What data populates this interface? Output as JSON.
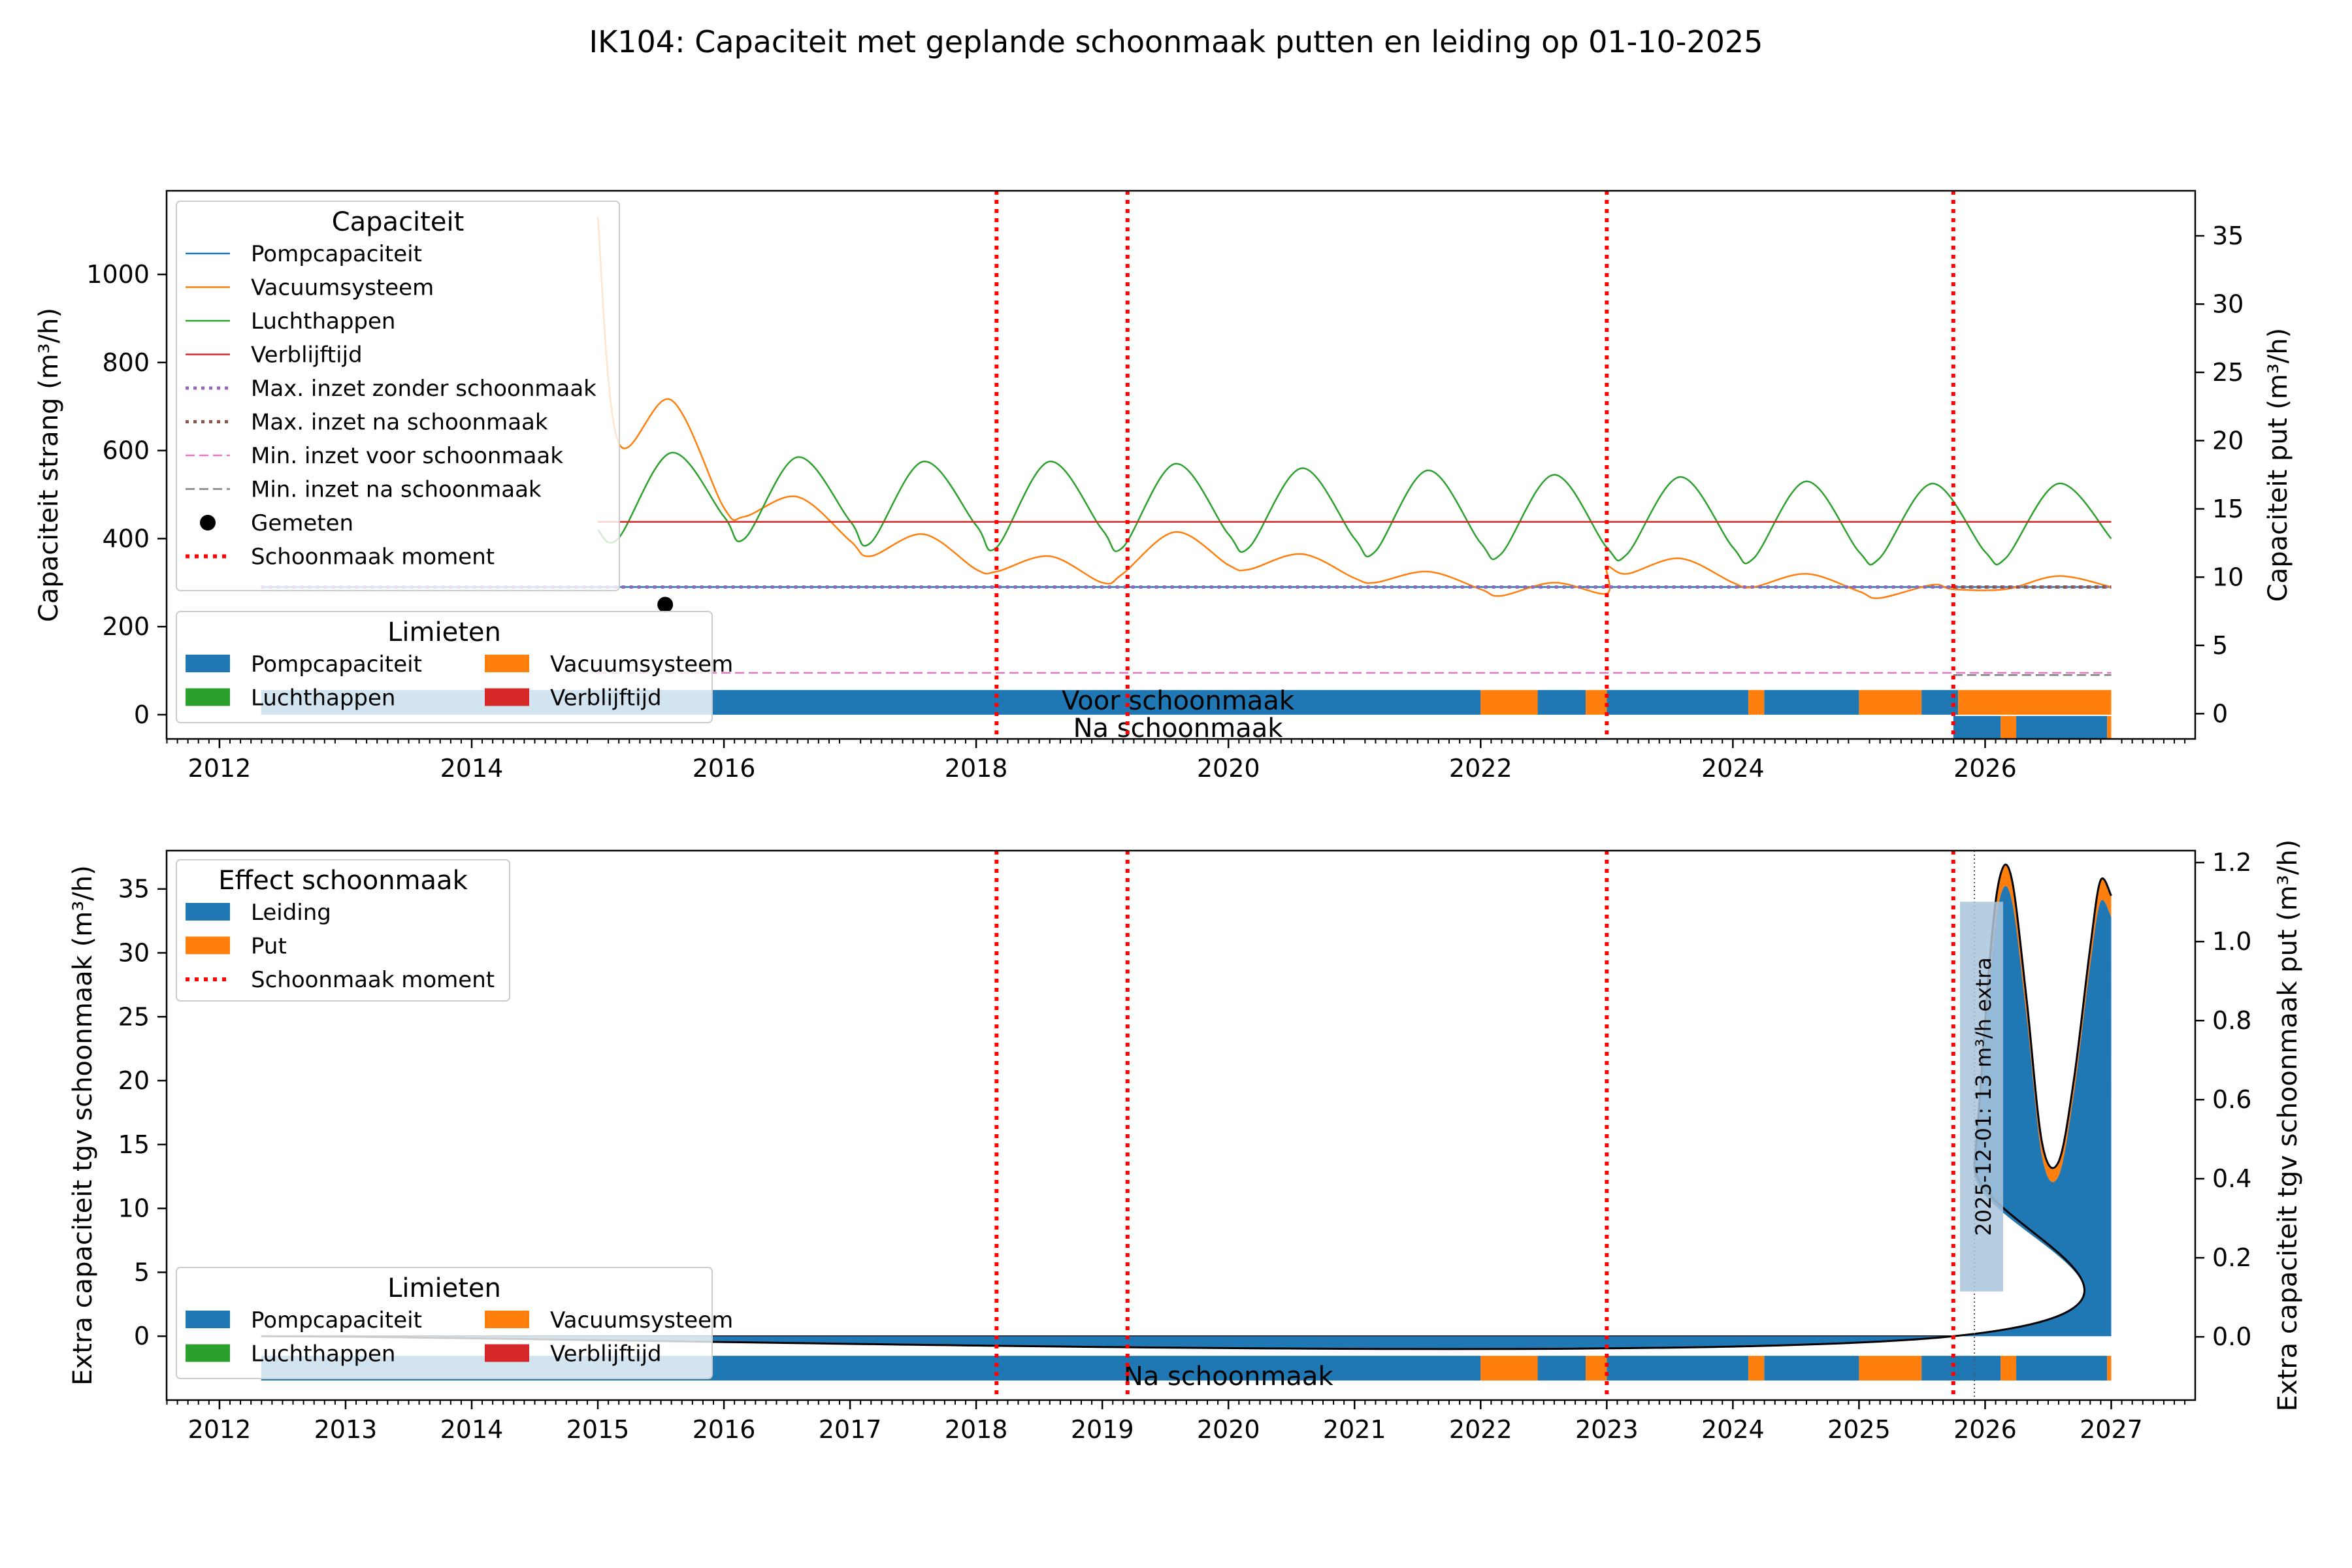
{
  "figure": {
    "title": "IK104: Capaciteit met geplande schoonmaak putten en leiding op 01-10-2025"
  },
  "colors": {
    "blue": "#1f77b4",
    "orange": "#ff7f0e",
    "green": "#2ca02c",
    "red": "#d62728",
    "purple": "#9467bd",
    "brown": "#8c564b",
    "pink": "#e377c2",
    "gray": "#7f7f7f",
    "clean_red": "#ff0000"
  },
  "chart_data": [
    {
      "type": "line",
      "panel": "top",
      "ylabel": "Capaciteit strang (m³/h)",
      "ylabel_right": "Capaciteit put (m³/h)",
      "xlim": [
        "2011-08-01",
        "2027-09-01"
      ],
      "ylim": [
        -55,
        1190
      ],
      "ylim_right": [
        -1.85,
        38.3
      ],
      "x_ticks": [
        "2012",
        "2014",
        "2016",
        "2018",
        "2020",
        "2022",
        "2024",
        "2026"
      ],
      "y_ticks": [
        "0",
        "200",
        "400",
        "600",
        "800",
        "1000"
      ],
      "y_ticks_right": [
        "0",
        "5",
        "10",
        "15",
        "20",
        "25",
        "30",
        "35"
      ],
      "legend_capaciteit": {
        "title": "Capaciteit",
        "entries": [
          "Pompcapaciteit",
          "Vacuumsysteem",
          "Luchthappen",
          "Verblijftijd",
          "Max. inzet zonder schoonmaak",
          "Max. inzet na schoonmaak",
          "Min. inzet voor schoonmaak",
          "Min. inzet na schoonmaak",
          "Gemeten",
          "Schoonmaak moment"
        ],
        "placement": "upper-left"
      },
      "legend_limieten": {
        "title": "Limieten",
        "entries": [
          "Pompcapaciteit",
          "Vacuumsysteem",
          "Luchthappen",
          "Verblijftijd"
        ],
        "placement": "lower-left"
      },
      "bar_labels": [
        "Voor schoonmaak",
        "Na schoonmaak"
      ],
      "series": [
        {
          "name": "Pompcapaciteit",
          "x": [
            "2012-05-01",
            "2027-01-01"
          ],
          "values": [
            290,
            290
          ]
        },
        {
          "name": "Vacuumsysteem",
          "x": [
            "2015-01-01",
            "2015-03-01",
            "2015-08-01",
            "2016-01-01",
            "2016-03-01",
            "2016-08-01",
            "2017-01-01",
            "2017-03-01",
            "2017-08-01",
            "2018-01-01",
            "2018-03-01",
            "2018-08-01",
            "2019-01-01",
            "2019-03-01",
            "2019-08-01",
            "2020-01-01",
            "2020-03-01",
            "2020-08-01",
            "2021-01-01",
            "2021-03-01",
            "2021-08-01",
            "2022-01-01",
            "2022-03-01",
            "2022-08-01",
            "2022-12-31",
            "2023-01-02",
            "2023-03-01",
            "2023-08-01",
            "2024-01-01",
            "2024-03-01",
            "2024-08-01",
            "2025-01-01",
            "2025-03-01",
            "2025-08-01",
            "2025-10-01",
            "2026-03-01",
            "2026-08-01",
            "2027-01-01"
          ],
          "values": [
            1130,
            620,
            715,
            470,
            450,
            495,
            395,
            360,
            410,
            330,
            325,
            360,
            300,
            320,
            415,
            340,
            330,
            365,
            310,
            300,
            325,
            285,
            270,
            300,
            275,
            335,
            320,
            355,
            300,
            290,
            320,
            280,
            265,
            295,
            285,
            285,
            315,
            290
          ]
        },
        {
          "name": "Luchthappen",
          "x": [
            "2015-01-01",
            "2015-03-01",
            "2015-08-01",
            "2016-01-01",
            "2016-03-01",
            "2016-08-01",
            "2017-01-01",
            "2017-03-01",
            "2017-08-01",
            "2018-01-01",
            "2018-03-01",
            "2018-08-01",
            "2019-01-01",
            "2019-03-01",
            "2019-08-01",
            "2020-01-01",
            "2020-03-01",
            "2020-08-01",
            "2021-01-01",
            "2021-03-01",
            "2021-08-01",
            "2022-01-01",
            "2022-03-01",
            "2022-08-01",
            "2023-01-01",
            "2023-03-01",
            "2023-08-01",
            "2024-01-01",
            "2024-03-01",
            "2024-08-01",
            "2025-01-01",
            "2025-03-01",
            "2025-08-01",
            "2026-01-01",
            "2026-03-01",
            "2026-08-01",
            "2027-01-01"
          ],
          "values": [
            420,
            400,
            595,
            450,
            400,
            585,
            440,
            390,
            575,
            430,
            380,
            575,
            420,
            380,
            570,
            410,
            380,
            560,
            400,
            370,
            555,
            390,
            365,
            545,
            380,
            365,
            540,
            380,
            355,
            530,
            370,
            355,
            525,
            370,
            355,
            525,
            400
          ]
        },
        {
          "name": "Verblijftijd",
          "x": [
            "2015-01-01",
            "2027-01-01"
          ],
          "values": [
            438,
            438
          ]
        },
        {
          "name": "Max. inzet zonder schoonmaak",
          "x": [
            "2012-05-01",
            "2027-01-01"
          ],
          "values": [
            290,
            290
          ]
        },
        {
          "name": "Max. inzet na schoonmaak",
          "x": [
            "2025-10-01",
            "2027-01-01"
          ],
          "values": [
            290,
            290
          ]
        },
        {
          "name": "Min. inzet voor schoonmaak",
          "x": [
            "2015-01-01",
            "2027-01-01"
          ],
          "values": [
            95,
            95
          ]
        },
        {
          "name": "Min. inzet na schoonmaak",
          "x": [
            "2025-10-01",
            "2027-01-01"
          ],
          "values": [
            90,
            90
          ]
        },
        {
          "name": "Gemeten",
          "x": [
            "2015-07-15"
          ],
          "values": [
            250
          ]
        }
      ],
      "cleaning_moments": [
        "2018-03-01",
        "2019-03-15",
        "2023-01-01",
        "2025-10-01"
      ],
      "limit_bars": {
        "voor": [
          {
            "start": "2012-05-01",
            "end": "2022-01-01",
            "limit": "Pompcapaciteit"
          },
          {
            "start": "2022-01-01",
            "end": "2022-06-15",
            "limit": "Vacuumsysteem"
          },
          {
            "start": "2022-06-15",
            "end": "2022-11-01",
            "limit": "Pompcapaciteit"
          },
          {
            "start": "2022-11-01",
            "end": "2023-01-01",
            "limit": "Vacuumsysteem"
          },
          {
            "start": "2023-01-01",
            "end": "2024-02-15",
            "limit": "Pompcapaciteit"
          },
          {
            "start": "2024-02-15",
            "end": "2024-04-01",
            "limit": "Vacuumsysteem"
          },
          {
            "start": "2024-04-01",
            "end": "2025-01-01",
            "limit": "Pompcapaciteit"
          },
          {
            "start": "2025-01-01",
            "end": "2025-07-01",
            "limit": "Vacuumsysteem"
          },
          {
            "start": "2025-07-01",
            "end": "2025-10-15",
            "limit": "Pompcapaciteit"
          },
          {
            "start": "2025-10-15",
            "end": "2027-01-01",
            "limit": "Vacuumsysteem"
          }
        ],
        "na": [
          {
            "start": "2025-10-01",
            "end": "2026-02-15",
            "limit": "Pompcapaciteit"
          },
          {
            "start": "2026-02-15",
            "end": "2026-04-01",
            "limit": "Vacuumsysteem"
          },
          {
            "start": "2026-04-01",
            "end": "2026-12-20",
            "limit": "Pompcapaciteit"
          },
          {
            "start": "2026-12-20",
            "end": "2027-01-01",
            "limit": "Vacuumsysteem"
          }
        ]
      }
    },
    {
      "type": "area",
      "panel": "bottom",
      "ylabel": "Extra capaciteit tgv schoonmaak (m³/h)",
      "ylabel_right": "Extra capaciteit tgv schoonmaak put (m³/h)",
      "xlim": [
        "2011-08-01",
        "2027-09-01"
      ],
      "ylim": [
        -5,
        38
      ],
      "ylim_right": [
        -0.16,
        1.23
      ],
      "x_ticks": [
        "2012",
        "2013",
        "2014",
        "2015",
        "2016",
        "2017",
        "2018",
        "2019",
        "2020",
        "2021",
        "2022",
        "2023",
        "2024",
        "2025",
        "2026",
        "2027"
      ],
      "y_ticks": [
        "0",
        "5",
        "10",
        "15",
        "20",
        "25",
        "30",
        "35"
      ],
      "y_ticks_right": [
        "0.0",
        "0.2",
        "0.4",
        "0.6",
        "0.8",
        "1.0",
        "1.2"
      ],
      "legend_effect": {
        "title": "Effect schoonmaak",
        "entries": [
          "Leiding",
          "Put",
          "Schoonmaak moment"
        ],
        "placement": "upper-left"
      },
      "legend_limieten": {
        "title": "Limieten",
        "entries": [
          "Pompcapaciteit",
          "Vacuumsysteem",
          "Luchthappen",
          "Verblijftijd"
        ],
        "placement": "lower-left"
      },
      "bar_label": "Na schoonmaak",
      "annotation": {
        "text": "2025-12-01: 13 m³/h extra",
        "x": "2025-12-01"
      },
      "series": [
        {
          "name": "Leiding",
          "x": [
            "2012-05-01",
            "2025-10-01",
            "2025-12-01",
            "2026-01-15",
            "2026-02-15",
            "2026-03-20",
            "2026-05-01",
            "2026-06-15",
            "2026-08-01",
            "2026-09-15",
            "2026-11-01",
            "2026-12-01",
            "2027-01-01"
          ],
          "values": [
            0,
            0,
            13,
            28,
            34.5,
            34,
            25,
            14,
            12.5,
            19,
            29,
            34,
            32.8
          ]
        },
        {
          "name": "Put",
          "x": [
            "2012-05-01",
            "2025-10-01",
            "2025-12-01",
            "2026-01-15",
            "2026-02-15",
            "2026-03-20",
            "2026-05-01",
            "2026-06-15",
            "2026-08-01",
            "2026-09-15",
            "2026-11-01",
            "2026-12-01",
            "2027-01-01"
          ],
          "values": [
            0,
            0,
            0.02,
            0.06,
            0.06,
            0.06,
            0.05,
            0.04,
            0.04,
            0.04,
            0.05,
            0.06,
            0.06
          ]
        }
      ],
      "cleaning_moments": [
        "2018-03-01",
        "2019-03-15",
        "2023-01-01",
        "2025-10-01"
      ],
      "limit_bars": {
        "na": [
          {
            "start": "2012-05-01",
            "end": "2022-01-01",
            "limit": "Pompcapaciteit"
          },
          {
            "start": "2022-01-01",
            "end": "2022-06-15",
            "limit": "Vacuumsysteem"
          },
          {
            "start": "2022-06-15",
            "end": "2022-11-01",
            "limit": "Pompcapaciteit"
          },
          {
            "start": "2022-11-01",
            "end": "2023-01-01",
            "limit": "Vacuumsysteem"
          },
          {
            "start": "2023-01-01",
            "end": "2024-02-15",
            "limit": "Pompcapaciteit"
          },
          {
            "start": "2024-02-15",
            "end": "2024-04-01",
            "limit": "Vacuumsysteem"
          },
          {
            "start": "2024-04-01",
            "end": "2025-01-01",
            "limit": "Pompcapaciteit"
          },
          {
            "start": "2025-01-01",
            "end": "2025-07-01",
            "limit": "Vacuumsysteem"
          },
          {
            "start": "2025-07-01",
            "end": "2026-02-15",
            "limit": "Pompcapaciteit"
          },
          {
            "start": "2026-02-15",
            "end": "2026-04-01",
            "limit": "Vacuumsysteem"
          },
          {
            "start": "2026-04-01",
            "end": "2026-12-20",
            "limit": "Pompcapaciteit"
          },
          {
            "start": "2026-12-20",
            "end": "2027-01-01",
            "limit": "Vacuumsysteem"
          }
        ]
      }
    }
  ]
}
